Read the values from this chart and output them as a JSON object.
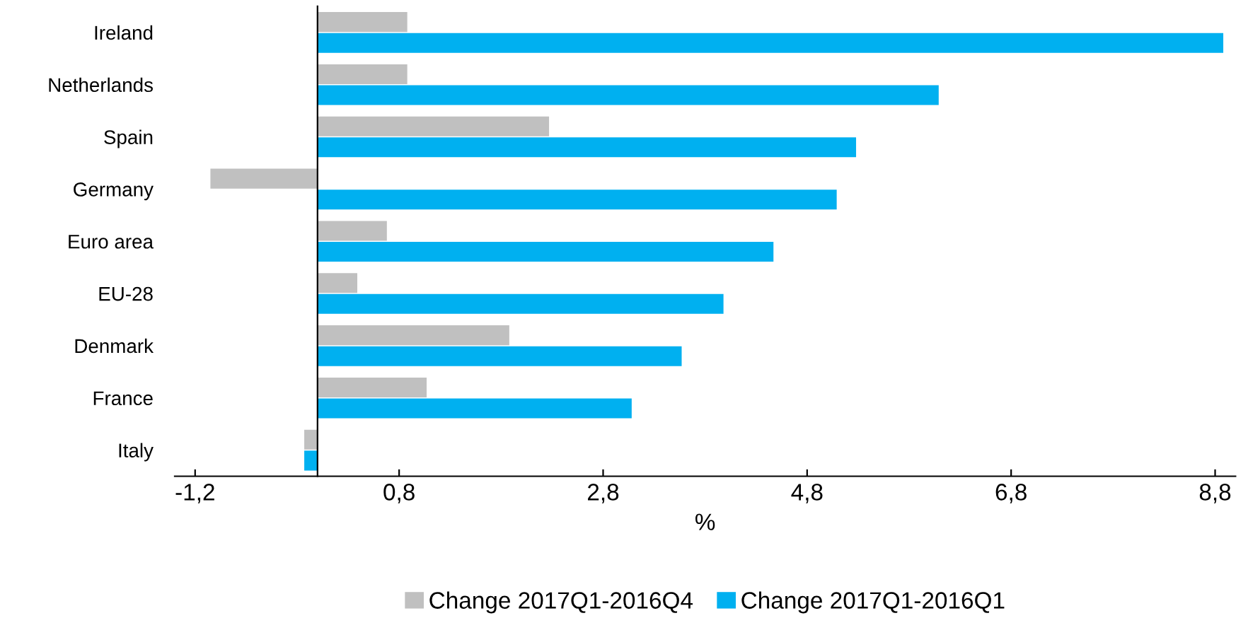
{
  "chart_data": {
    "type": "bar",
    "orientation": "horizontal",
    "xlabel": "%",
    "categories": [
      "Ireland",
      "Netherlands",
      "Spain",
      "Germany",
      "Euro area",
      "EU-28",
      "Denmark",
      "France",
      "Italy"
    ],
    "series": [
      {
        "name": "Change 2017Q1-2016Q4",
        "color": "#c0c0c0",
        "values": [
          0.88,
          0.88,
          2.27,
          -1.05,
          0.68,
          0.39,
          1.88,
          1.07,
          -0.13
        ]
      },
      {
        "name": "Change 2017Q1-2016Q1",
        "color": "#00b0f0",
        "values": [
          8.88,
          6.09,
          5.28,
          5.09,
          4.47,
          3.98,
          3.57,
          3.08,
          -0.13
        ]
      }
    ],
    "xlim": [
      -1.4,
      9.0
    ],
    "xticks": [
      {
        "value": -1.2,
        "label": "-1,2"
      },
      {
        "value": 0.8,
        "label": "0,8"
      },
      {
        "value": 2.8,
        "label": "2,8"
      },
      {
        "value": 4.8,
        "label": "4,8"
      },
      {
        "value": 6.8,
        "label": "6,8"
      },
      {
        "value": 8.8,
        "label": "8,8"
      }
    ],
    "grid": false,
    "legend": "bottom"
  }
}
